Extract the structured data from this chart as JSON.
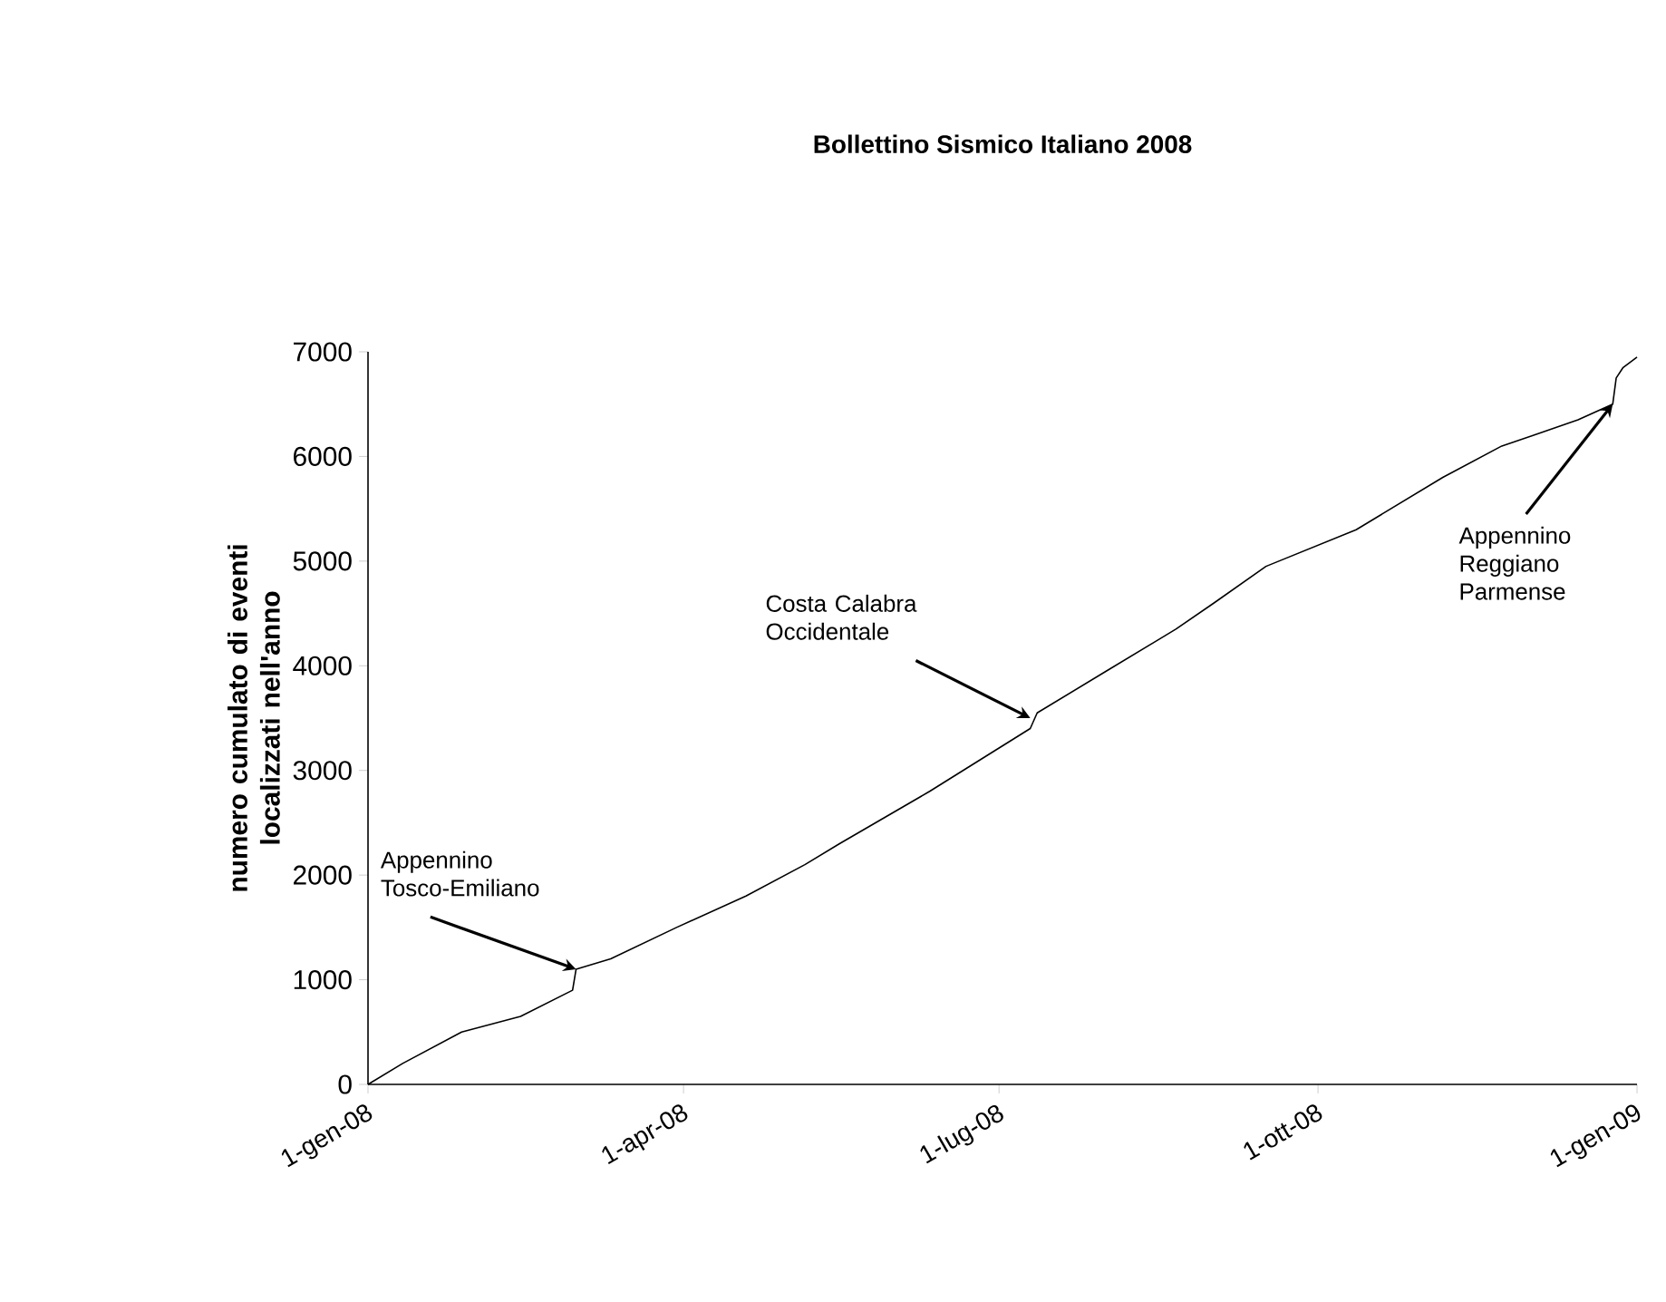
{
  "chart_data": {
    "type": "line",
    "title": "Bollettino Sismico Italiano 2008",
    "ylabel": "numero cumulato di eventi localizzati nell'anno",
    "x": [
      "2008-01-01",
      "2008-01-11",
      "2008-01-28",
      "2008-02-14",
      "2008-02-29",
      "2008-03-01",
      "2008-03-11",
      "2008-03-30",
      "2008-04-19",
      "2008-05-06",
      "2008-05-16",
      "2008-06-11",
      "2008-07-10",
      "2008-07-12",
      "2008-08-01",
      "2008-08-21",
      "2008-09-01",
      "2008-09-16",
      "2008-10-12",
      "2008-11-06",
      "2008-11-23",
      "2008-12-02",
      "2008-12-15",
      "2008-12-25",
      "2008-12-26",
      "2008-12-28",
      "2009-01-01"
    ],
    "series": [
      {
        "color": "#000000",
        "values": [
          0,
          200,
          500,
          650,
          900,
          1100,
          1200,
          1500,
          1800,
          2100,
          2300,
          2800,
          3400,
          3550,
          3950,
          4350,
          4600,
          4950,
          5300,
          5800,
          6100,
          6200,
          6350,
          6500,
          6750,
          6850,
          6950
        ]
      }
    ],
    "xlim": [
      "2008-01-01",
      "2009-01-01"
    ],
    "xticks": [
      {
        "value": "2008-01-01",
        "label": "1-gen-08"
      },
      {
        "value": "2008-04-01",
        "label": "1-apr-08"
      },
      {
        "value": "2008-07-01",
        "label": "1-lug-08"
      },
      {
        "value": "2008-10-01",
        "label": "1-ott-08"
      },
      {
        "value": "2009-01-01",
        "label": "1-gen-09"
      }
    ],
    "ylim": [
      0,
      7000
    ],
    "yticks": [
      0,
      1000,
      2000,
      3000,
      4000,
      5000,
      6000,
      7000
    ],
    "grid": false,
    "marker": "none",
    "line_style": "solid",
    "annotations": [
      {
        "text": "Appennino Tosco-Emiliano",
        "x": "2008-03-01",
        "y": 1100
      },
      {
        "text": "Costa Calabra Occidentale",
        "x": "2008-07-10",
        "y": 3500
      },
      {
        "text": "Appennino Reggiano Parmense",
        "x": "2008-12-25",
        "y": 6500
      }
    ]
  }
}
